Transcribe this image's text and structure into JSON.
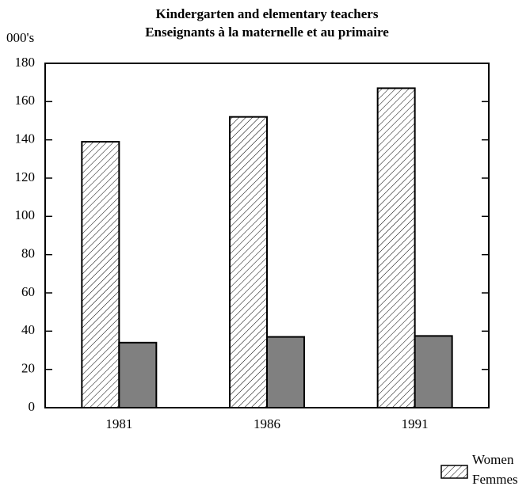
{
  "chart_data": {
    "type": "bar",
    "title": "Kindergarten and elementary teachers",
    "subtitle": "Enseignants à la maternelle et au primaire",
    "y_label": "000's",
    "categories": [
      "1981",
      "1986",
      "1991"
    ],
    "series": [
      {
        "name": "Women",
        "name_fr": "Femmes",
        "color": "#ffffff",
        "hatch": true,
        "values": [
          139,
          152,
          167
        ]
      },
      {
        "color": "#808080",
        "hatch": false,
        "values": [
          34,
          37,
          37.5
        ]
      }
    ],
    "ylim": [
      0,
      180
    ],
    "yticks": [
      0,
      20,
      40,
      60,
      80,
      100,
      120,
      140,
      160,
      180
    ],
    "grid": false,
    "legend": "bottom-right"
  }
}
